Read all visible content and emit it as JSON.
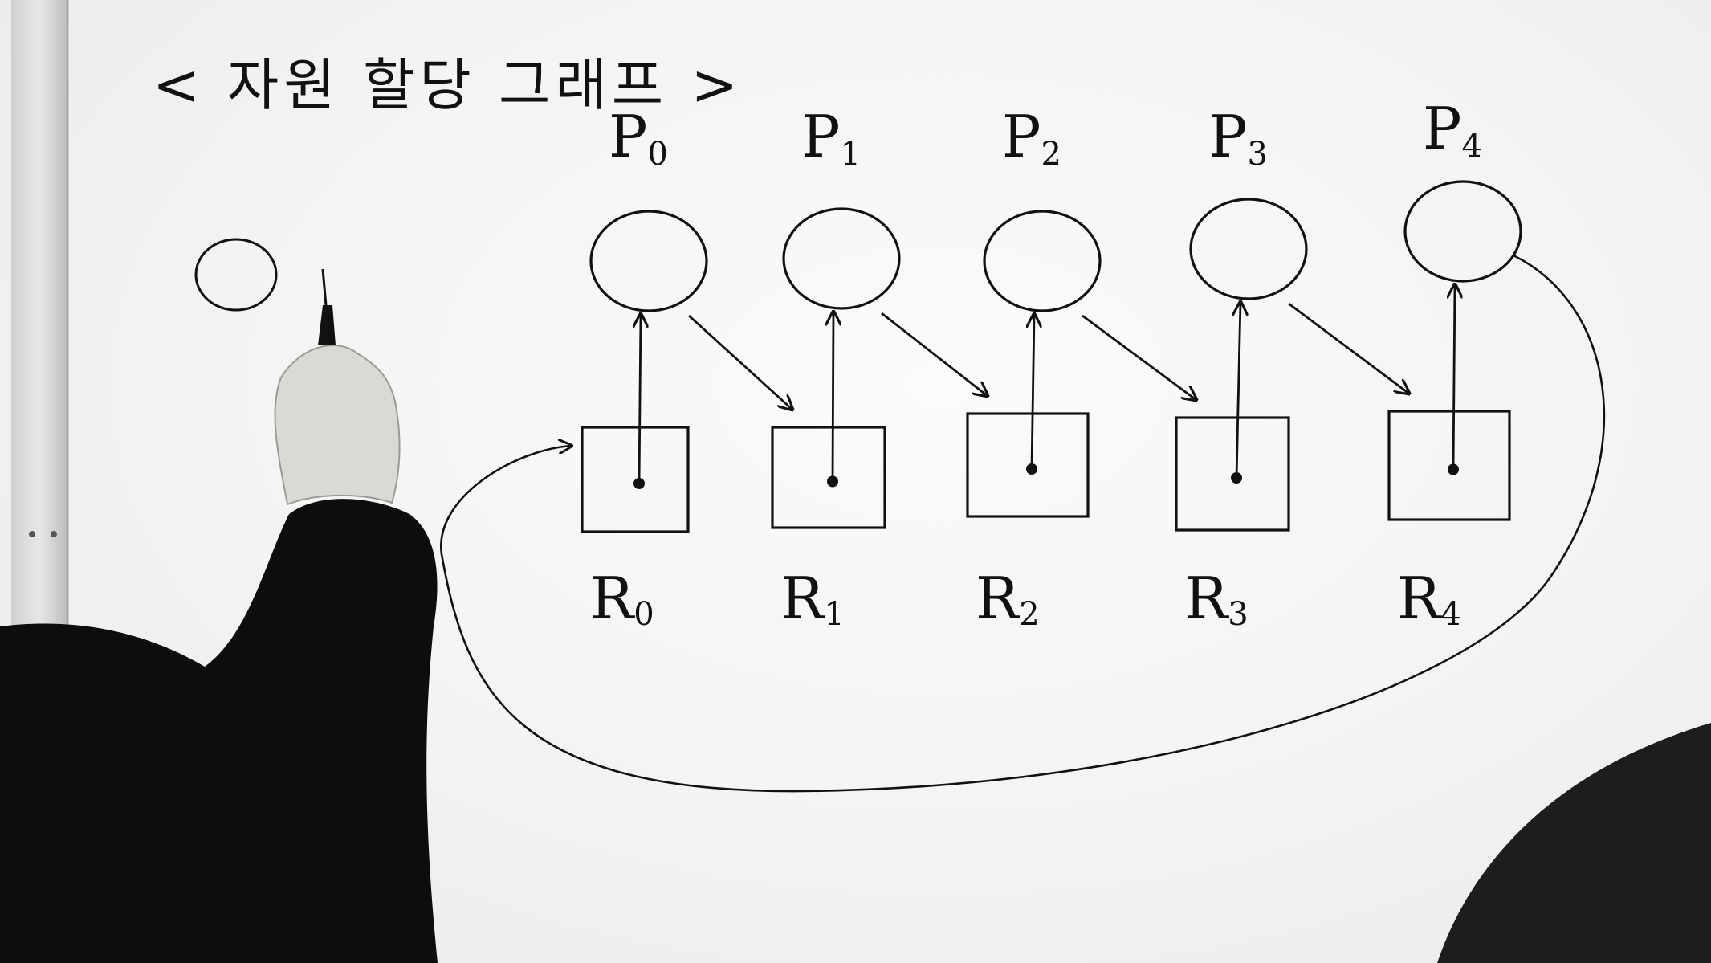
{
  "title": "< 자원 할당 그래프 >",
  "processes": [
    {
      "name": "P",
      "sub": "0"
    },
    {
      "name": "P",
      "sub": "1"
    },
    {
      "name": "P",
      "sub": "2"
    },
    {
      "name": "P",
      "sub": "3"
    },
    {
      "name": "P",
      "sub": "4"
    }
  ],
  "resources": [
    {
      "name": "R",
      "sub": "0"
    },
    {
      "name": "R",
      "sub": "1"
    },
    {
      "name": "R",
      "sub": "2"
    },
    {
      "name": "R",
      "sub": "3"
    },
    {
      "name": "R",
      "sub": "4"
    }
  ],
  "edges": {
    "assignment": [
      {
        "from": "R0",
        "to": "P0"
      },
      {
        "from": "R1",
        "to": "P1"
      },
      {
        "from": "R2",
        "to": "P2"
      },
      {
        "from": "R3",
        "to": "P3"
      },
      {
        "from": "R4",
        "to": "P4"
      }
    ],
    "request": [
      {
        "from": "P0",
        "to": "R1"
      },
      {
        "from": "P1",
        "to": "R2"
      },
      {
        "from": "P2",
        "to": "R3"
      },
      {
        "from": "P3",
        "to": "R4"
      },
      {
        "from": "P4",
        "to": "R0"
      }
    ]
  },
  "colors": {
    "ink": "#111111",
    "board": "#f4f4f2",
    "sleeve": "#0d0d0d",
    "skin": "#d9d9d6"
  }
}
